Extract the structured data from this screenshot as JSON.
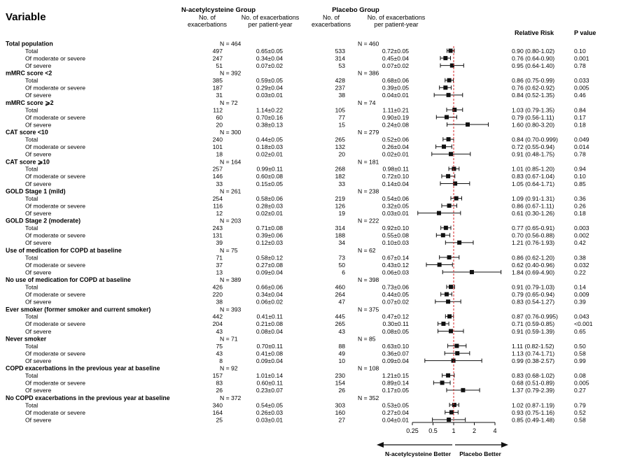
{
  "header": {
    "variable": "Variable",
    "nac_group": "N-acetylcysteine Group",
    "placebo_group": "Placebo Group",
    "no_of": "No. of",
    "exacerbations": "exacerbations",
    "no_of_exac": "No. of exacerbations",
    "per_patient_year": "per patient-year",
    "relative_risk": "Relative Risk",
    "p_value": "P value"
  },
  "chart_data": {
    "type": "forest",
    "x_scale": "log",
    "xlim": [
      0.25,
      4
    ],
    "reference_line": 1,
    "x_ticks": [
      0.25,
      0.5,
      1,
      2,
      4
    ],
    "x_tick_labels": [
      "0.25",
      "0.5",
      "1",
      "2",
      "4"
    ],
    "favors_left": "N-acetylcysteine Better",
    "favors_right": "Placebo Better",
    "groups": [
      {
        "name": "Total population",
        "nac_n": "N = 464",
        "pl_n": "N = 460",
        "rows": [
          {
            "label": "Total",
            "nac_exac": "497",
            "nac_rate": "0.65±0.05",
            "pl_exac": "533",
            "pl_rate": "0.72±0.05",
            "rr_text": "0.90 (0.80-1.02)",
            "p": "0.10",
            "rr": 0.9,
            "lo": 0.8,
            "hi": 1.02
          },
          {
            "label": "Of moderate or severe",
            "nac_exac": "247",
            "nac_rate": "0.34±0.04",
            "pl_exac": "314",
            "pl_rate": "0.45±0.04",
            "rr_text": "0.76 (0.64-0.90)",
            "p": "0.001",
            "rr": 0.76,
            "lo": 0.64,
            "hi": 0.9
          },
          {
            "label": "Of severe",
            "nac_exac": "51",
            "nac_rate": "0.07±0.02",
            "pl_exac": "53",
            "pl_rate": "0.07±0.02",
            "rr_text": "0.95 (0.64-1.40)",
            "p": "0.78",
            "rr": 0.95,
            "lo": 0.64,
            "hi": 1.4
          }
        ]
      },
      {
        "name": "mMRC score <2",
        "nac_n": "N = 392",
        "pl_n": "N = 386",
        "rows": [
          {
            "label": "Total",
            "nac_exac": "385",
            "nac_rate": "0.59±0.05",
            "pl_exac": "428",
            "pl_rate": "0.68±0.06",
            "rr_text": "0.86 (0.75-0.99)",
            "p": "0.033",
            "rr": 0.86,
            "lo": 0.75,
            "hi": 0.99
          },
          {
            "label": "Of moderate or severe",
            "nac_exac": "187",
            "nac_rate": "0.29±0.04",
            "pl_exac": "237",
            "pl_rate": "0.39±0.05",
            "rr_text": "0.76 (0.62-0.92)",
            "p": "0.005",
            "rr": 0.76,
            "lo": 0.62,
            "hi": 0.92
          },
          {
            "label": "Of severe",
            "nac_exac": "31",
            "nac_rate": "0.03±0.01",
            "pl_exac": "38",
            "pl_rate": "0.04±0.01",
            "rr_text": "0.84 (0.52-1.35)",
            "p": "0.46",
            "rr": 0.84,
            "lo": 0.52,
            "hi": 1.35
          }
        ]
      },
      {
        "name": "mMRC score ⩾2",
        "nac_n": "N = 72",
        "pl_n": "N = 74",
        "rows": [
          {
            "label": "Total",
            "nac_exac": "112",
            "nac_rate": "1.14±0.22",
            "pl_exac": "105",
            "pl_rate": "1.11±0.21",
            "rr_text": "1.03 (0.79-1.35)",
            "p": "0.84",
            "rr": 1.03,
            "lo": 0.79,
            "hi": 1.35
          },
          {
            "label": "Of moderate or severe",
            "nac_exac": "60",
            "nac_rate": "0.70±0.16",
            "pl_exac": "77",
            "pl_rate": "0.90±0.19",
            "rr_text": "0.79 (0.56-1.11)",
            "p": "0.17",
            "rr": 0.79,
            "lo": 0.56,
            "hi": 1.11
          },
          {
            "label": "Of severe",
            "nac_exac": "20",
            "nac_rate": "0.38±0.13",
            "pl_exac": "15",
            "pl_rate": "0.24±0.08",
            "rr_text": "1.60 (0.80-3.20)",
            "p": "0.18",
            "rr": 1.6,
            "lo": 0.8,
            "hi": 3.2
          }
        ]
      },
      {
        "name": "CAT score <10",
        "nac_n": "N = 300",
        "pl_n": "N = 279",
        "rows": [
          {
            "label": "Total",
            "nac_exac": "240",
            "nac_rate": "0.44±0.05",
            "pl_exac": "265",
            "pl_rate": "0.52±0.06",
            "rr_text": "0.84 (0.70-0.999)",
            "p": "0.049",
            "rr": 0.84,
            "lo": 0.7,
            "hi": 0.999
          },
          {
            "label": "Of moderate or severe",
            "nac_exac": "101",
            "nac_rate": "0.18±0.03",
            "pl_exac": "132",
            "pl_rate": "0.26±0.04",
            "rr_text": "0.72 (0.55-0.94)",
            "p": "0.014",
            "rr": 0.72,
            "lo": 0.55,
            "hi": 0.94
          },
          {
            "label": "Of severe",
            "nac_exac": "18",
            "nac_rate": "0.02±0.01",
            "pl_exac": "20",
            "pl_rate": "0.02±0.01",
            "rr_text": "0.91 (0.48-1.75)",
            "p": "0.78",
            "rr": 0.91,
            "lo": 0.48,
            "hi": 1.75
          }
        ]
      },
      {
        "name": "CAT score ⩾10",
        "nac_n": "N = 164",
        "pl_n": "N = 181",
        "rows": [
          {
            "label": "Total",
            "nac_exac": "257",
            "nac_rate": "0.99±0.11",
            "pl_exac": "268",
            "pl_rate": "0.98±0.11",
            "rr_text": "1.01 (0.85-1.20)",
            "p": "0.94",
            "rr": 1.01,
            "lo": 0.85,
            "hi": 1.2
          },
          {
            "label": "Of moderate or severe",
            "nac_exac": "146",
            "nac_rate": "0.60±0.08",
            "pl_exac": "182",
            "pl_rate": "0.72±0.10",
            "rr_text": "0.83 (0.67-1.04)",
            "p": "0.10",
            "rr": 0.83,
            "lo": 0.67,
            "hi": 1.04
          },
          {
            "label": "Of severe",
            "nac_exac": "33",
            "nac_rate": "0.15±0.05",
            "pl_exac": "33",
            "pl_rate": "0.14±0.04",
            "rr_text": "1.05 (0.64-1.71)",
            "p": "0.85",
            "rr": 1.05,
            "lo": 0.64,
            "hi": 1.71
          }
        ]
      },
      {
        "name": "GOLD Stage 1 (mild)",
        "nac_n": "N = 261",
        "pl_n": "N = 238",
        "rows": [
          {
            "label": "Total",
            "nac_exac": "254",
            "nac_rate": "0.58±0.06",
            "pl_exac": "219",
            "pl_rate": "0.54±0.06",
            "rr_text": "1.09 (0.91-1.31)",
            "p": "0.36",
            "rr": 1.09,
            "lo": 0.91,
            "hi": 1.31
          },
          {
            "label": "Of moderate or severe",
            "nac_exac": "116",
            "nac_rate": "0.28±0.03",
            "pl_exac": "126",
            "pl_rate": "0.32±0.05",
            "rr_text": "0.86 (0.67-1.11)",
            "p": "0.26",
            "rr": 0.86,
            "lo": 0.67,
            "hi": 1.11
          },
          {
            "label": "Of severe",
            "nac_exac": "12",
            "nac_rate": "0.02±0.01",
            "pl_exac": "19",
            "pl_rate": "0.03±0.01",
            "rr_text": "0.61 (0.30-1.26)",
            "p": "0.18",
            "rr": 0.61,
            "lo": 0.3,
            "hi": 1.26
          }
        ]
      },
      {
        "name": "GOLD Stage 2 (moderate)",
        "nac_n": "N = 203",
        "pl_n": "N = 222",
        "rows": [
          {
            "label": "Total",
            "nac_exac": "243",
            "nac_rate": "0.71±0.08",
            "pl_exac": "314",
            "pl_rate": "0.92±0.10",
            "rr_text": "0.77 (0.65-0.91)",
            "p": "0.003",
            "rr": 0.77,
            "lo": 0.65,
            "hi": 0.91
          },
          {
            "label": "Of moderate or severe",
            "nac_exac": "131",
            "nac_rate": "0.39±0.06",
            "pl_exac": "188",
            "pl_rate": "0.55±0.08",
            "rr_text": "0.70 (0.56-0.88)",
            "p": "0.002",
            "rr": 0.7,
            "lo": 0.56,
            "hi": 0.88
          },
          {
            "label": "Of severe",
            "nac_exac": "39",
            "nac_rate": "0.12±0.03",
            "pl_exac": "34",
            "pl_rate": "0.10±0.03",
            "rr_text": "1.21 (0.76-1.93)",
            "p": "0.42",
            "rr": 1.21,
            "lo": 0.76,
            "hi": 1.93
          }
        ]
      },
      {
        "name": "Use of medication for COPD at baseline",
        "nac_n": "N = 75",
        "pl_n": "N = 62",
        "rows": [
          {
            "label": "Total",
            "nac_exac": "71",
            "nac_rate": "0.58±0.12",
            "pl_exac": "73",
            "pl_rate": "0.67±0.14",
            "rr_text": "0.86 (0.62-1.20)",
            "p": "0.38",
            "rr": 0.86,
            "lo": 0.62,
            "hi": 1.2
          },
          {
            "label": "Of moderate or severe",
            "nac_exac": "37",
            "nac_rate": "0.27±0.08",
            "pl_exac": "50",
            "pl_rate": "0.43±0.12",
            "rr_text": "0.62 (0.40-0.96)",
            "p": "0.032",
            "rr": 0.62,
            "lo": 0.4,
            "hi": 0.96
          },
          {
            "label": "Of severe",
            "nac_exac": "13",
            "nac_rate": "0.09±0.04",
            "pl_exac": "6",
            "pl_rate": "0.06±0.03",
            "rr_text": "1.84 (0.69-4.90)",
            "p": "0.22",
            "rr": 1.84,
            "lo": 0.69,
            "hi": 4.9
          }
        ]
      },
      {
        "name": "No use of medication for COPD at baseline",
        "nac_n": "N = 389",
        "pl_n": "N = 398",
        "rows": [
          {
            "label": "Total",
            "nac_exac": "426",
            "nac_rate": "0.66±0.06",
            "pl_exac": "460",
            "pl_rate": "0.73±0.06",
            "rr_text": "0.91 (0.79-1.03)",
            "p": "0.14",
            "rr": 0.91,
            "lo": 0.79,
            "hi": 1.03
          },
          {
            "label": "Of moderate or severe",
            "nac_exac": "220",
            "nac_rate": "0.34±0.04",
            "pl_exac": "264",
            "pl_rate": "0.44±0.05",
            "rr_text": "0.79 (0.65-0.94)",
            "p": "0.009",
            "rr": 0.79,
            "lo": 0.65,
            "hi": 0.94
          },
          {
            "label": "Of severe",
            "nac_exac": "38",
            "nac_rate": "0.06±0.02",
            "pl_exac": "47",
            "pl_rate": "0.07±0.02",
            "rr_text": "0.83 (0.54-1.27)",
            "p": "0.39",
            "rr": 0.83,
            "lo": 0.54,
            "hi": 1.27
          }
        ]
      },
      {
        "name": "Ever smoker (former smoker and current smoker)",
        "nac_n": "N = 393",
        "pl_n": "N = 375",
        "rows": [
          {
            "label": "Total",
            "nac_exac": "442",
            "nac_rate": "0.41±0.11",
            "pl_exac": "445",
            "pl_rate": "0.47±0.12",
            "rr_text": "0.87 (0.76-0.995)",
            "p": "0.043",
            "rr": 0.87,
            "lo": 0.76,
            "hi": 0.995
          },
          {
            "label": "Of moderate or severe",
            "nac_exac": "204",
            "nac_rate": "0.21±0.08",
            "pl_exac": "265",
            "pl_rate": "0.30±0.11",
            "rr_text": "0.71 (0.59-0.85)",
            "p": "<0.001",
            "rr": 0.71,
            "lo": 0.59,
            "hi": 0.85
          },
          {
            "label": "Of severe",
            "nac_exac": "43",
            "nac_rate": "0.08±0.04",
            "pl_exac": "43",
            "pl_rate": "0.08±0.05",
            "rr_text": "0.91 (0.59-1.39)",
            "p": "0.65",
            "rr": 0.91,
            "lo": 0.59,
            "hi": 1.39
          }
        ]
      },
      {
        "name": "Never smoker",
        "nac_n": "N = 71",
        "pl_n": "N = 85",
        "rows": [
          {
            "label": "Total",
            "nac_exac": "75",
            "nac_rate": "0.70±0.11",
            "pl_exac": "88",
            "pl_rate": "0.63±0.10",
            "rr_text": "1.11 (0.82-1.52)",
            "p": "0.50",
            "rr": 1.11,
            "lo": 0.82,
            "hi": 1.52
          },
          {
            "label": "Of moderate or severe",
            "nac_exac": "43",
            "nac_rate": "0.41±0.08",
            "pl_exac": "49",
            "pl_rate": "0.36±0.07",
            "rr_text": "1.13 (0.74-1.71)",
            "p": "0.58",
            "rr": 1.13,
            "lo": 0.74,
            "hi": 1.71
          },
          {
            "label": "Of severe",
            "nac_exac": "8",
            "nac_rate": "0.09±0.04",
            "pl_exac": "10",
            "pl_rate": "0.09±0.04",
            "rr_text": "0.99 (0.38-2.57)",
            "p": "0.99",
            "rr": 0.99,
            "lo": 0.38,
            "hi": 2.57
          }
        ]
      },
      {
        "name": "COPD exacerbations in the previous year at baseline",
        "nac_n": "N = 92",
        "pl_n": "N = 108",
        "rows": [
          {
            "label": "Total",
            "nac_exac": "157",
            "nac_rate": "1.01±0.14",
            "pl_exac": "230",
            "pl_rate": "1.21±0.15",
            "rr_text": "0.83 (0.68-1.02)",
            "p": "0.08",
            "rr": 0.83,
            "lo": 0.68,
            "hi": 1.02
          },
          {
            "label": "Of moderate or severe",
            "nac_exac": "83",
            "nac_rate": "0.60±0.11",
            "pl_exac": "154",
            "pl_rate": "0.89±0.14",
            "rr_text": "0.68 (0.51-0.89)",
            "p": "0.005",
            "rr": 0.68,
            "lo": 0.51,
            "hi": 0.89
          },
          {
            "label": "Of severe",
            "nac_exac": "26",
            "nac_rate": "0.23±0.07",
            "pl_exac": "26",
            "pl_rate": "0.17±0.05",
            "rr_text": "1.37 (0.79-2.39)",
            "p": "0.27",
            "rr": 1.37,
            "lo": 0.79,
            "hi": 2.39
          }
        ]
      },
      {
        "name": "No COPD exacerbations in the previous year at baseline",
        "nac_n": "N = 372",
        "pl_n": "N = 352",
        "rows": [
          {
            "label": "Total",
            "nac_exac": "340",
            "nac_rate": "0.54±0.05",
            "pl_exac": "303",
            "pl_rate": "0.53±0.05",
            "rr_text": "1.02 (0.87-1.19)",
            "p": "0.79",
            "rr": 1.02,
            "lo": 0.87,
            "hi": 1.19
          },
          {
            "label": "Of moderate or severe",
            "nac_exac": "164",
            "nac_rate": "0.26±0.03",
            "pl_exac": "160",
            "pl_rate": "0.27±0.04",
            "rr_text": "0.93 (0.75-1.16)",
            "p": "0.52",
            "rr": 0.93,
            "lo": 0.75,
            "hi": 1.16
          },
          {
            "label": "Of severe",
            "nac_exac": "25",
            "nac_rate": "0.03±0.01",
            "pl_exac": "27",
            "pl_rate": "0.04±0.01",
            "rr_text": "0.85 (0.49-1.48)",
            "p": "0.58",
            "rr": 0.85,
            "lo": 0.49,
            "hi": 1.48
          }
        ]
      }
    ]
  }
}
